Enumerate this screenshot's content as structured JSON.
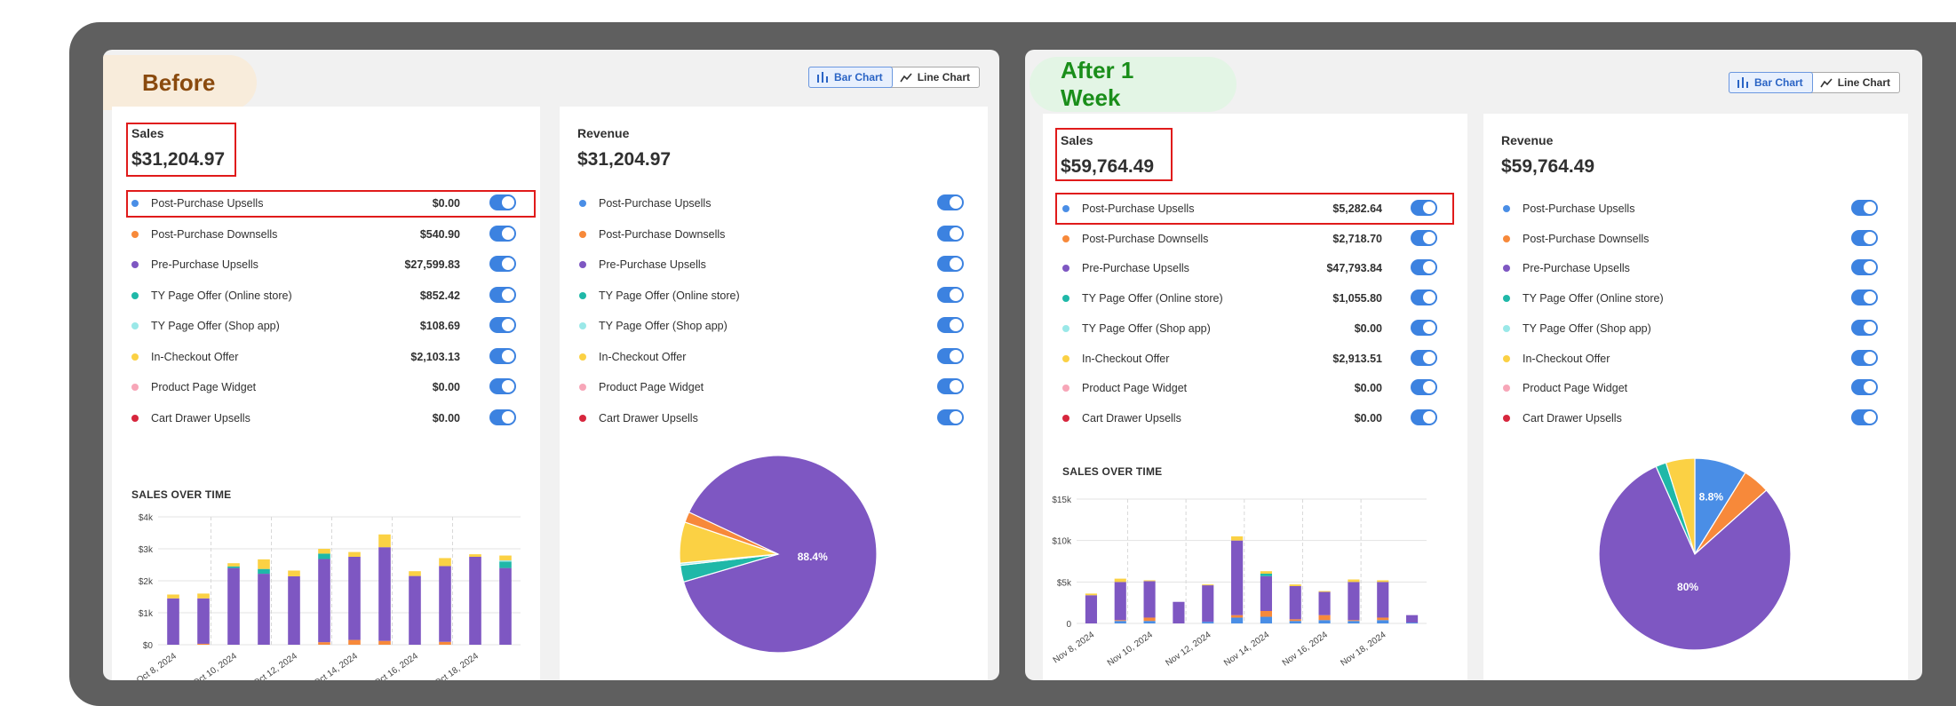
{
  "before": {
    "badge": "Before",
    "view_toggle": {
      "bar_label": "Bar Chart",
      "line_label": "Line Chart",
      "active": "bar"
    },
    "sales": {
      "title": "Sales",
      "total": "$31,204.97",
      "rows": [
        {
          "label": "Post-Purchase Upsells",
          "value": "$0.00",
          "color": "#4a8ee6"
        },
        {
          "label": "Post-Purchase Downsells",
          "value": "$540.90",
          "color": "#f7893a"
        },
        {
          "label": "Pre-Purchase Upsells",
          "value": "$27,599.83",
          "color": "#7e57c2"
        },
        {
          "label": "TY Page Offer (Online store)",
          "value": "$852.42",
          "color": "#1fb8a8"
        },
        {
          "label": "TY Page Offer (Shop app)",
          "value": "$108.69",
          "color": "#9ae8e8"
        },
        {
          "label": "In-Checkout Offer",
          "value": "$2,103.13",
          "color": "#fbd144"
        },
        {
          "label": "Product Page Widget",
          "value": "$0.00",
          "color": "#f7a6b8"
        },
        {
          "label": "Cart Drawer Upsells",
          "value": "$0.00",
          "color": "#d7263d"
        }
      ]
    },
    "revenue": {
      "title": "Revenue",
      "total": "$31,204.97",
      "rows": [
        {
          "label": "Post-Purchase Upsells",
          "color": "#4a8ee6"
        },
        {
          "label": "Post-Purchase Downsells",
          "color": "#f7893a"
        },
        {
          "label": "Pre-Purchase Upsells",
          "color": "#7e57c2"
        },
        {
          "label": "TY Page Offer (Online store)",
          "color": "#1fb8a8"
        },
        {
          "label": "TY Page Offer (Shop app)",
          "color": "#9ae8e8"
        },
        {
          "label": "In-Checkout Offer",
          "color": "#fbd144"
        },
        {
          "label": "Product Page Widget",
          "color": "#f7a6b8"
        },
        {
          "label": "Cart Drawer Upsells",
          "color": "#d7263d"
        }
      ]
    },
    "sales_over_time_title": "SALES OVER TIME"
  },
  "after": {
    "badge": "After 1 Week",
    "view_toggle": {
      "bar_label": "Bar Chart",
      "line_label": "Line Chart",
      "active": "bar"
    },
    "sales": {
      "title": "Sales",
      "total": "$59,764.49",
      "rows": [
        {
          "label": "Post-Purchase Upsells",
          "value": "$5,282.64",
          "color": "#4a8ee6"
        },
        {
          "label": "Post-Purchase Downsells",
          "value": "$2,718.70",
          "color": "#f7893a"
        },
        {
          "label": "Pre-Purchase Upsells",
          "value": "$47,793.84",
          "color": "#7e57c2"
        },
        {
          "label": "TY Page Offer (Online store)",
          "value": "$1,055.80",
          "color": "#1fb8a8"
        },
        {
          "label": "TY Page Offer (Shop app)",
          "value": "$0.00",
          "color": "#9ae8e8"
        },
        {
          "label": "In-Checkout Offer",
          "value": "$2,913.51",
          "color": "#fbd144"
        },
        {
          "label": "Product Page Widget",
          "value": "$0.00",
          "color": "#f7a6b8"
        },
        {
          "label": "Cart Drawer Upsells",
          "value": "$0.00",
          "color": "#d7263d"
        }
      ]
    },
    "revenue": {
      "title": "Revenue",
      "total": "$59,764.49",
      "rows": [
        {
          "label": "Post-Purchase Upsells",
          "color": "#4a8ee6"
        },
        {
          "label": "Post-Purchase Downsells",
          "color": "#f7893a"
        },
        {
          "label": "Pre-Purchase Upsells",
          "color": "#7e57c2"
        },
        {
          "label": "TY Page Offer (Online store)",
          "color": "#1fb8a8"
        },
        {
          "label": "TY Page Offer (Shop app)",
          "color": "#9ae8e8"
        },
        {
          "label": "In-Checkout Offer",
          "color": "#fbd144"
        },
        {
          "label": "Product Page Widget",
          "color": "#f7a6b8"
        },
        {
          "label": "Cart Drawer Upsells",
          "color": "#d7263d"
        }
      ]
    },
    "sales_over_time_title": "SALES OVER TIME"
  },
  "chart_data": [
    {
      "type": "bar",
      "stacked": true,
      "panel": "before",
      "title": "SALES OVER TIME",
      "y_ticks": [
        "$0",
        "$1k",
        "$2k",
        "$3k",
        "$4k"
      ],
      "ylim": [
        0,
        4000
      ],
      "x_tick_labels": [
        "Oct 8, 2024",
        "Oct 10, 2024",
        "Oct 12, 2024",
        "Oct 14, 2024",
        "Oct 16, 2024",
        "Oct 18, 2024"
      ],
      "categories": [
        "Oct 8",
        "Oct 9",
        "Oct 10",
        "Oct 11",
        "Oct 12",
        "Oct 13",
        "Oct 14",
        "Oct 15",
        "Oct 16",
        "Oct 17",
        "Oct 18",
        "Oct 19"
      ],
      "series": [
        {
          "name": "Post-Purchase Downsells",
          "color": "#f7893a",
          "values": [
            0,
            30,
            0,
            0,
            0,
            80,
            150,
            120,
            0,
            90,
            0,
            0
          ]
        },
        {
          "name": "Pre-Purchase Upsells",
          "color": "#7e57c2",
          "values": [
            1450,
            1420,
            2400,
            2220,
            2140,
            2600,
            2600,
            2930,
            2150,
            2370,
            2750,
            2400
          ]
        },
        {
          "name": "TY Page Offer (Online store)",
          "color": "#1fb8a8",
          "values": [
            0,
            0,
            50,
            150,
            0,
            170,
            0,
            0,
            0,
            0,
            0,
            200
          ]
        },
        {
          "name": "TY Page Offer (Shop app)",
          "color": "#9ae8e8",
          "values": [
            0,
            0,
            0,
            0,
            0,
            0,
            0,
            0,
            0,
            0,
            0,
            40
          ]
        },
        {
          "name": "In-Checkout Offer",
          "color": "#fbd144",
          "values": [
            120,
            150,
            100,
            300,
            180,
            150,
            150,
            400,
            150,
            250,
            80,
            150
          ]
        }
      ]
    },
    {
      "type": "pie",
      "panel": "before",
      "title": "Revenue",
      "slices": [
        {
          "name": "Pre-Purchase Upsells",
          "value": 27599.83,
          "color": "#7e57c2",
          "label": "88.4%"
        },
        {
          "name": "TY Page Offer (Online store)",
          "value": 852.42,
          "color": "#1fb8a8"
        },
        {
          "name": "TY Page Offer (Shop app)",
          "value": 108.69,
          "color": "#9ae8e8"
        },
        {
          "name": "In-Checkout Offer",
          "value": 2103.13,
          "color": "#fbd144"
        },
        {
          "name": "Post-Purchase Downsells",
          "value": 540.9,
          "color": "#f7893a"
        }
      ]
    },
    {
      "type": "bar",
      "stacked": true,
      "panel": "after",
      "title": "SALES OVER TIME",
      "y_ticks": [
        "0",
        "$5k",
        "$10k",
        "$15k"
      ],
      "ylim": [
        0,
        15000
      ],
      "x_tick_labels": [
        "Nov 8, 2024",
        "Nov 10, 2024",
        "Nov 12, 2024",
        "Nov 14, 2024",
        "Nov 16, 2024",
        "Nov 18, 2024"
      ],
      "categories": [
        "Nov 8",
        "Nov 9",
        "Nov 10",
        "Nov 11",
        "Nov 12",
        "Nov 13",
        "Nov 14",
        "Nov 15",
        "Nov 16",
        "Nov 17",
        "Nov 18",
        "Nov 19"
      ],
      "series": [
        {
          "name": "Post-Purchase Upsells",
          "color": "#4a8ee6",
          "values": [
            0,
            300,
            300,
            0,
            200,
            700,
            800,
            300,
            400,
            300,
            400,
            100
          ]
        },
        {
          "name": "Post-Purchase Downsells",
          "color": "#f7893a",
          "values": [
            0,
            100,
            400,
            0,
            0,
            300,
            700,
            200,
            600,
            100,
            300,
            0
          ]
        },
        {
          "name": "Pre-Purchase Upsells",
          "color": "#7e57c2",
          "values": [
            3400,
            4600,
            4400,
            2600,
            4400,
            9000,
            4200,
            4000,
            2800,
            4600,
            4300,
            900
          ]
        },
        {
          "name": "TY Page Offer (Online store)",
          "color": "#1fb8a8",
          "values": [
            0,
            0,
            0,
            0,
            0,
            0,
            300,
            0,
            0,
            0,
            0,
            0
          ]
        },
        {
          "name": "In-Checkout Offer",
          "color": "#fbd144",
          "values": [
            200,
            400,
            100,
            0,
            100,
            500,
            300,
            200,
            100,
            300,
            200,
            0
          ]
        }
      ]
    },
    {
      "type": "pie",
      "panel": "after",
      "title": "Revenue",
      "slices": [
        {
          "name": "Post-Purchase Upsells",
          "value": 5282.64,
          "color": "#4a8ee6",
          "label": "8.8%"
        },
        {
          "name": "Post-Purchase Downsells",
          "value": 2718.7,
          "color": "#f7893a"
        },
        {
          "name": "Pre-Purchase Upsells",
          "value": 47793.84,
          "color": "#7e57c2",
          "label": "80%"
        },
        {
          "name": "TY Page Offer (Online store)",
          "value": 1055.8,
          "color": "#1fb8a8"
        },
        {
          "name": "In-Checkout Offer",
          "value": 2913.51,
          "color": "#fbd144"
        }
      ]
    }
  ]
}
